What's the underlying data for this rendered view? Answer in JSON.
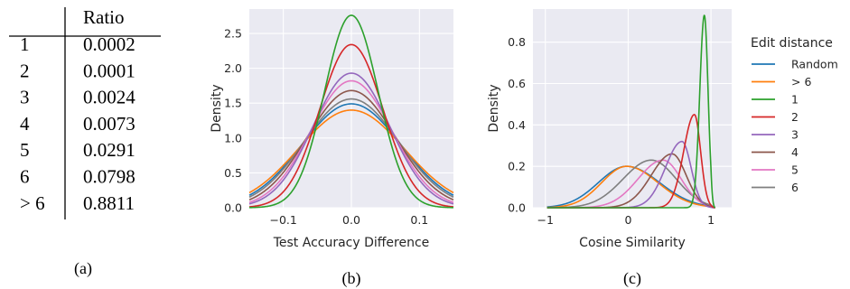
{
  "table": {
    "header": "Ratio",
    "rows": [
      {
        "label": "1",
        "value": "0.0002"
      },
      {
        "label": "2",
        "value": "0.0001"
      },
      {
        "label": "3",
        "value": "0.0024"
      },
      {
        "label": "4",
        "value": "0.0073"
      },
      {
        "label": "5",
        "value": "0.0291"
      },
      {
        "label": "6",
        "value": "0.0798"
      },
      {
        "label": "> 6",
        "value": "0.8811"
      }
    ],
    "caption": "(a)"
  },
  "captions": {
    "b": "(b)",
    "c": "(c)"
  },
  "colors": {
    "Random": "#1f77b4",
    "> 6": "#ff7f0e",
    "1": "#2ca02c",
    "2": "#d62728",
    "3": "#9467bd",
    "4": "#8c564b",
    "5": "#e377c2",
    "6": "#7f7f7f"
  },
  "chart_data": [
    {
      "type": "line",
      "kind": "kde",
      "xlabel": "Test Accuracy Difference",
      "ylabel": "Density",
      "xlim": [
        -0.15,
        0.15
      ],
      "ylim": [
        0,
        2.85
      ],
      "xticks": [
        -0.1,
        0.0,
        0.1
      ],
      "xtick_labels": [
        "−0.1",
        "0.0",
        "0.1"
      ],
      "yticks": [
        0.0,
        0.5,
        1.0,
        1.5,
        2.0,
        2.5
      ],
      "ytick_labels": [
        "0.0",
        "0.5",
        "1.0",
        "1.5",
        "2.0",
        "2.5"
      ],
      "grid": true,
      "series": [
        {
          "key": "Random",
          "peak_x": 0.0,
          "peak_y": 1.49
        },
        {
          "key": "> 6",
          "peak_x": 0.0,
          "peak_y": 1.4
        },
        {
          "key": "1",
          "peak_x": 0.0,
          "peak_y": 2.76
        },
        {
          "key": "2",
          "peak_x": 0.0,
          "peak_y": 2.34
        },
        {
          "key": "3",
          "peak_x": 0.0,
          "peak_y": 1.93
        },
        {
          "key": "4",
          "peak_x": 0.0,
          "peak_y": 1.68
        },
        {
          "key": "5",
          "peak_x": 0.0,
          "peak_y": 1.82
        },
        {
          "key": "6",
          "peak_x": 0.0,
          "peak_y": 1.56
        }
      ]
    },
    {
      "type": "line",
      "kind": "kde",
      "xlabel": "Cosine Similarity",
      "ylabel": "Density",
      "xlim": [
        -1.15,
        1.25
      ],
      "ylim": [
        0,
        0.96
      ],
      "xticks": [
        -1,
        0,
        1
      ],
      "xtick_labels": [
        "−1",
        "0",
        "1"
      ],
      "yticks": [
        0.0,
        0.2,
        0.4,
        0.6,
        0.8
      ],
      "ytick_labels": [
        "0.0",
        "0.2",
        "0.4",
        "0.6",
        "0.8"
      ],
      "grid": true,
      "legend_position": "right",
      "legend_title": "Edit distance",
      "series": [
        {
          "key": "Random",
          "name": "Random",
          "peak_x": -0.02,
          "peak_y": 0.2
        },
        {
          "key": "> 6",
          "name": "> 6",
          "peak_x": -0.02,
          "peak_y": 0.2
        },
        {
          "key": "1",
          "name": "1",
          "peak_x": 0.92,
          "peak_y": 0.93
        },
        {
          "key": "2",
          "name": "2",
          "peak_x": 0.8,
          "peak_y": 0.45
        },
        {
          "key": "3",
          "name": "3",
          "peak_x": 0.65,
          "peak_y": 0.32
        },
        {
          "key": "4",
          "name": "4",
          "peak_x": 0.53,
          "peak_y": 0.26
        },
        {
          "key": "5",
          "name": "5",
          "peak_x": 0.42,
          "peak_y": 0.23
        },
        {
          "key": "6",
          "name": "6",
          "peak_x": 0.28,
          "peak_y": 0.23
        }
      ]
    }
  ]
}
